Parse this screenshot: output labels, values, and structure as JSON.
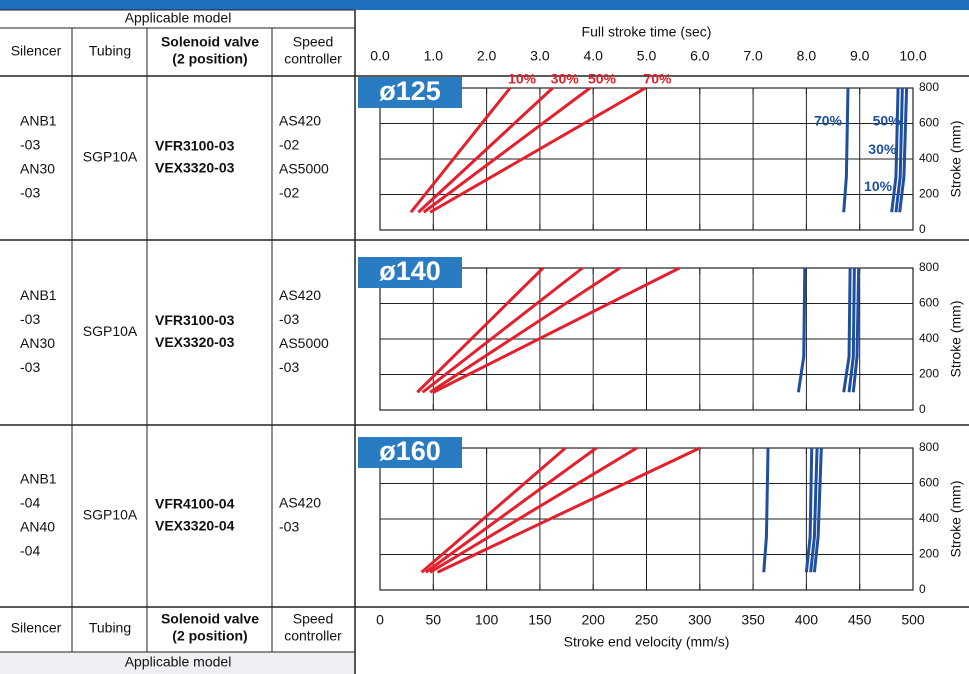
{
  "table": {
    "group_header": "Applicable model",
    "columns": [
      "Silencer",
      "Tubing",
      [
        "Solenoid valve",
        "(2 position)"
      ],
      [
        "Speed",
        "controller"
      ]
    ],
    "rows": [
      {
        "silencer": [
          "ANB1",
          "-03",
          "AN30",
          "-03"
        ],
        "tubing": "SGP10A",
        "valve": [
          "VFR3100-03",
          "VEX3320-03"
        ],
        "controller": [
          "AS420",
          "-02",
          "AS5000",
          "-02"
        ]
      },
      {
        "silencer": [
          "ANB1",
          "-03",
          "AN30",
          "-03"
        ],
        "tubing": "SGP10A",
        "valve": [
          "VFR3100-03",
          "VEX3320-03"
        ],
        "controller": [
          "AS420",
          "-03",
          "AS5000",
          "-03"
        ]
      },
      {
        "silencer": [
          "ANB1",
          "-04",
          "AN40",
          "-04"
        ],
        "tubing": "SGP10A",
        "valve": [
          "VFR4100-04",
          "VEX3320-04"
        ],
        "controller": [
          "AS420",
          "-03"
        ]
      }
    ],
    "footer_columns": [
      "Silencer",
      "Tubing",
      [
        "Solenoid valve",
        "(2 position)"
      ],
      [
        "Speed",
        "controller"
      ]
    ],
    "footer_group_header": "Applicable model"
  },
  "time_axis": {
    "label": "Full stroke time (sec)",
    "xlim": [
      0,
      10
    ],
    "xticks": [
      {
        "value": 0,
        "label": "0.0"
      },
      {
        "value": 1,
        "label": "1.0"
      },
      {
        "value": 2,
        "label": "2.0"
      },
      {
        "value": 3,
        "label": "3.0"
      },
      {
        "value": 4,
        "label": "4.0"
      },
      {
        "value": 5,
        "label": "5.0"
      },
      {
        "value": 6,
        "label": "6.0"
      },
      {
        "value": 7,
        "label": "7.0"
      },
      {
        "value": 8,
        "label": "8.0"
      },
      {
        "value": 9,
        "label": "9.0"
      },
      {
        "value": 10,
        "label": "10.0"
      }
    ]
  },
  "velocity_axis": {
    "label": "Stroke end velocity (mm/s)",
    "xlim": [
      0,
      500
    ],
    "xticks": [
      0,
      50,
      100,
      150,
      200,
      250,
      300,
      350,
      400,
      450,
      500
    ]
  },
  "chart_data": [
    {
      "type": "line",
      "title": "ø125",
      "ylabel": "Stroke (mm)",
      "ylim": [
        0,
        800
      ],
      "yticks": [
        0,
        200,
        400,
        600,
        800
      ],
      "grid": true,
      "series": [
        {
          "name": "10%",
          "color": "#e3202d",
          "axis": "velocity",
          "x": [
            29,
            122
          ],
          "values": [
            100,
            800
          ]
        },
        {
          "name": "30%",
          "color": "#e3202d",
          "axis": "velocity",
          "x": [
            36,
            162
          ],
          "values": [
            100,
            800
          ]
        },
        {
          "name": "50%",
          "color": "#e3202d",
          "axis": "velocity",
          "x": [
            41,
            197
          ],
          "values": [
            100,
            800
          ]
        },
        {
          "name": "70%",
          "color": "#e3202d",
          "axis": "velocity",
          "x": [
            47,
            249
          ],
          "values": [
            100,
            800
          ]
        },
        {
          "name": "70%",
          "color": "#1f4fa0",
          "axis": "time",
          "x": [
            8.7,
            8.75,
            8.78
          ],
          "values": [
            100,
            300,
            800
          ]
        },
        {
          "name": "10%",
          "color": "#1f4fa0",
          "axis": "time",
          "x": [
            9.6,
            9.68,
            9.72
          ],
          "values": [
            100,
            300,
            800
          ]
        },
        {
          "name": "30%",
          "color": "#1f4fa0",
          "axis": "time",
          "x": [
            9.68,
            9.76,
            9.8
          ],
          "values": [
            100,
            300,
            800
          ]
        },
        {
          "name": "50%",
          "color": "#1f4fa0",
          "axis": "time",
          "x": [
            9.75,
            9.83,
            9.88
          ],
          "values": [
            100,
            300,
            800
          ]
        }
      ]
    },
    {
      "type": "line",
      "title": "ø140",
      "ylabel": "Stroke (mm)",
      "ylim": [
        0,
        800
      ],
      "yticks": [
        0,
        200,
        400,
        600,
        800
      ],
      "grid": true,
      "series": [
        {
          "color": "#e3202d",
          "axis": "velocity",
          "x": [
            35,
            153
          ],
          "values": [
            100,
            800
          ]
        },
        {
          "color": "#e3202d",
          "axis": "velocity",
          "x": [
            40,
            190
          ],
          "values": [
            100,
            800
          ]
        },
        {
          "color": "#e3202d",
          "axis": "velocity",
          "x": [
            47,
            225
          ],
          "values": [
            100,
            800
          ]
        },
        {
          "color": "#e3202d",
          "axis": "velocity",
          "x": [
            50,
            281
          ],
          "values": [
            100,
            800
          ]
        },
        {
          "color": "#1f4fa0",
          "axis": "time",
          "x": [
            7.85,
            7.95,
            7.97
          ],
          "values": [
            100,
            300,
            800
          ]
        },
        {
          "color": "#1f4fa0",
          "axis": "time",
          "x": [
            8.7,
            8.8,
            8.82
          ],
          "values": [
            100,
            300,
            800
          ]
        },
        {
          "color": "#1f4fa0",
          "axis": "time",
          "x": [
            8.8,
            8.88,
            8.9
          ],
          "values": [
            100,
            300,
            800
          ]
        },
        {
          "color": "#1f4fa0",
          "axis": "time",
          "x": [
            8.88,
            8.95,
            8.98
          ],
          "values": [
            100,
            300,
            800
          ]
        }
      ]
    },
    {
      "type": "line",
      "title": "ø160",
      "ylabel": "Stroke (mm)",
      "ylim": [
        0,
        800
      ],
      "yticks": [
        0,
        200,
        400,
        600,
        800
      ],
      "grid": true,
      "series": [
        {
          "color": "#e3202d",
          "axis": "velocity",
          "x": [
            39,
            174
          ],
          "values": [
            100,
            800
          ]
        },
        {
          "color": "#e3202d",
          "axis": "velocity",
          "x": [
            43,
            203
          ],
          "values": [
            100,
            800
          ]
        },
        {
          "color": "#e3202d",
          "axis": "velocity",
          "x": [
            47,
            241
          ],
          "values": [
            100,
            800
          ]
        },
        {
          "color": "#e3202d",
          "axis": "velocity",
          "x": [
            54,
            300
          ],
          "values": [
            100,
            800
          ]
        },
        {
          "color": "#1f4fa0",
          "axis": "time",
          "x": [
            7.2,
            7.25,
            7.28
          ],
          "values": [
            100,
            300,
            800
          ]
        },
        {
          "color": "#1f4fa0",
          "axis": "time",
          "x": [
            8.0,
            8.07,
            8.1
          ],
          "values": [
            100,
            300,
            800
          ]
        },
        {
          "color": "#1f4fa0",
          "axis": "time",
          "x": [
            8.08,
            8.15,
            8.2
          ],
          "values": [
            100,
            300,
            800
          ]
        },
        {
          "color": "#1f4fa0",
          "axis": "time",
          "x": [
            8.15,
            8.22,
            8.28
          ],
          "values": [
            100,
            300,
            800
          ]
        }
      ]
    }
  ]
}
